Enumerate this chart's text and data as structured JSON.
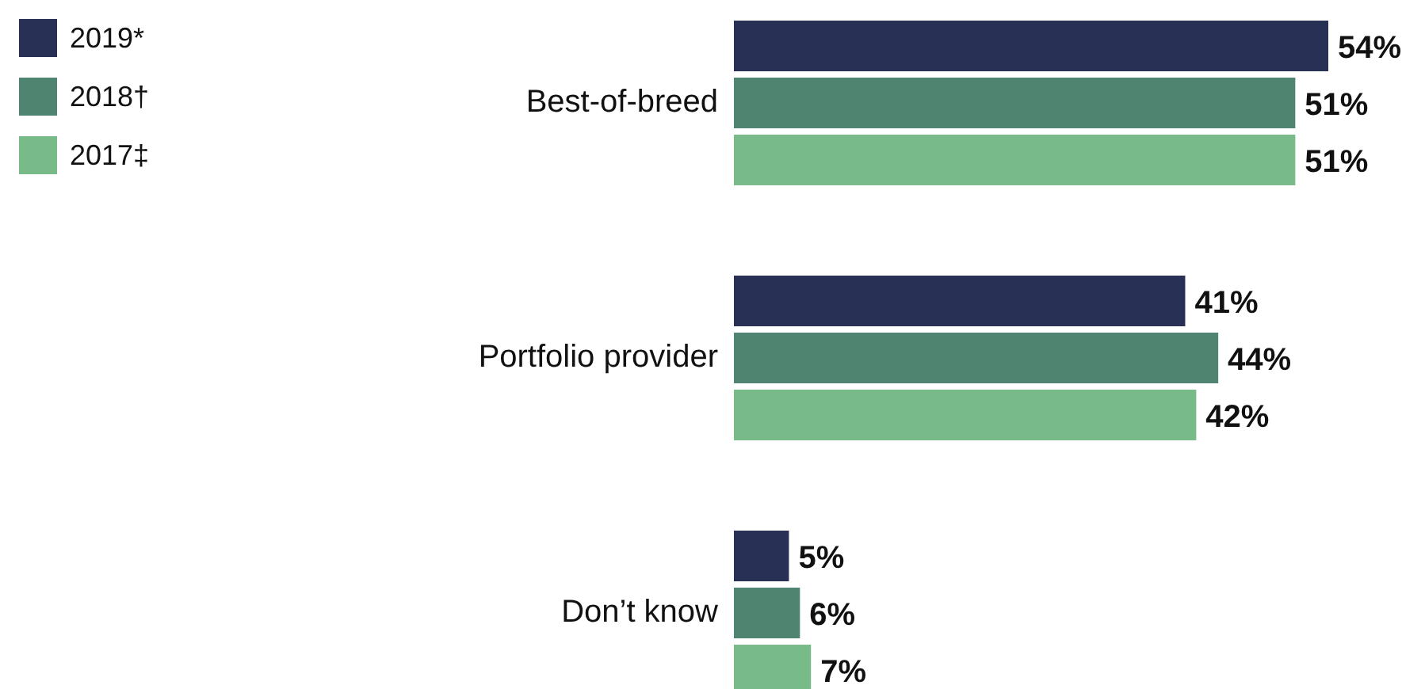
{
  "chart_data": {
    "type": "bar",
    "orientation": "horizontal",
    "categories": [
      "Best-of-breed",
      "Portfolio provider",
      "Don’t know"
    ],
    "series": [
      {
        "name": "2019*",
        "color": "#283056",
        "values": [
          54,
          41,
          5
        ],
        "value_labels": [
          "54%",
          "41%",
          "5%"
        ]
      },
      {
        "name": "2018†",
        "color": "#4e8470",
        "values": [
          51,
          44,
          6
        ],
        "value_labels": [
          "51%",
          "44%",
          "6%"
        ]
      },
      {
        "name": "2017‡",
        "color": "#79bb88",
        "values": [
          51,
          42,
          7
        ],
        "value_labels": [
          "51%",
          "42%",
          "7%"
        ]
      }
    ],
    "legend": "top left"
  }
}
